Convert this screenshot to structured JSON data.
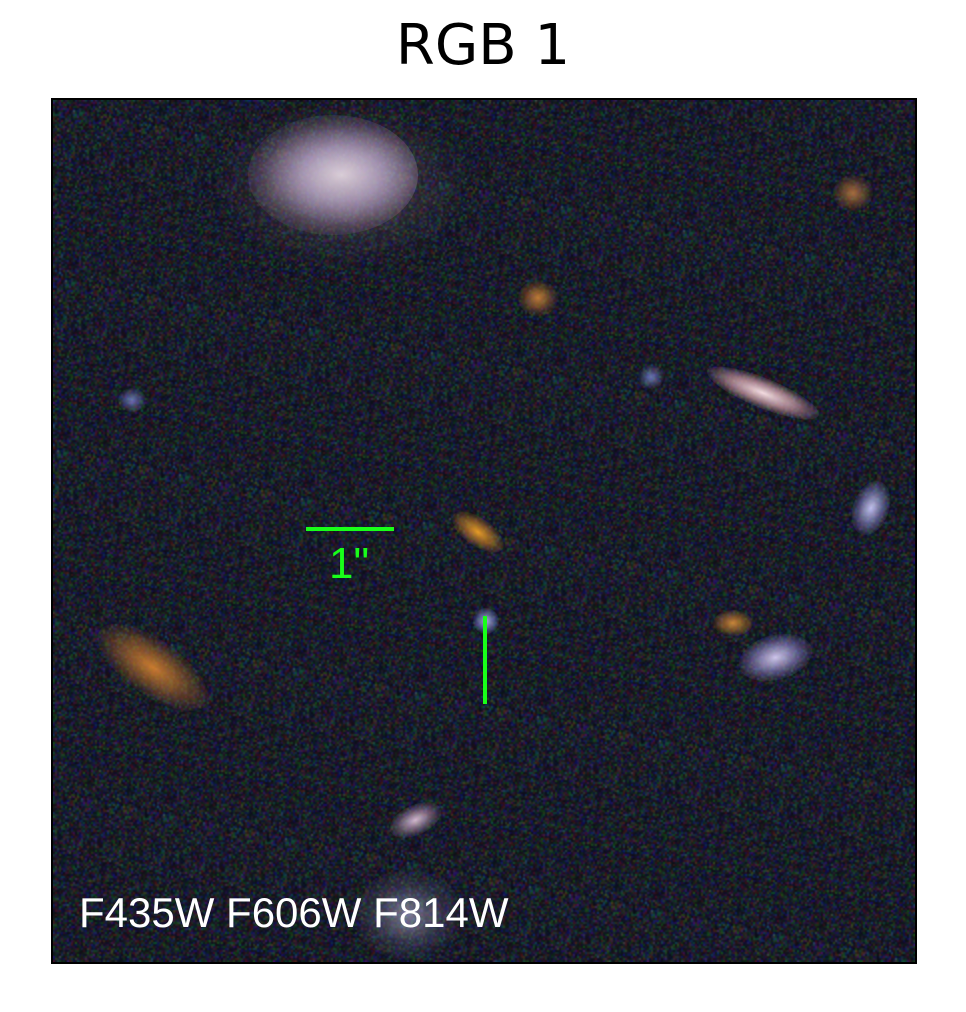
{
  "title": "RGB 1",
  "scale_label": "1\"",
  "filters_label": "F435W F606W F814W",
  "colors": {
    "marker": "#19ff19",
    "background_sky": "#0b0d14",
    "frame_border": "#000000"
  }
}
